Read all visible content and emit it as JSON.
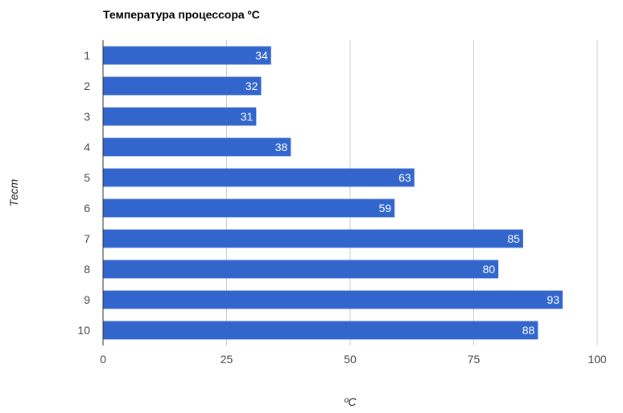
{
  "chart_data": {
    "type": "bar",
    "orientation": "horizontal",
    "title": "Температура процессора ºC",
    "xlabel": "ºC",
    "ylabel": "Тест",
    "categories": [
      "1",
      "2",
      "3",
      "4",
      "5",
      "6",
      "7",
      "8",
      "9",
      "10"
    ],
    "values": [
      34,
      32,
      31,
      38,
      63,
      59,
      85,
      80,
      93,
      88
    ],
    "xlim": [
      0,
      100
    ],
    "xticks": [
      "0",
      "25",
      "50",
      "75",
      "100"
    ],
    "grid": true,
    "legend": "none",
    "colors": {
      "bar": "#3366cc",
      "grid": "#cccccc",
      "data_label": "#ffffff"
    }
  }
}
